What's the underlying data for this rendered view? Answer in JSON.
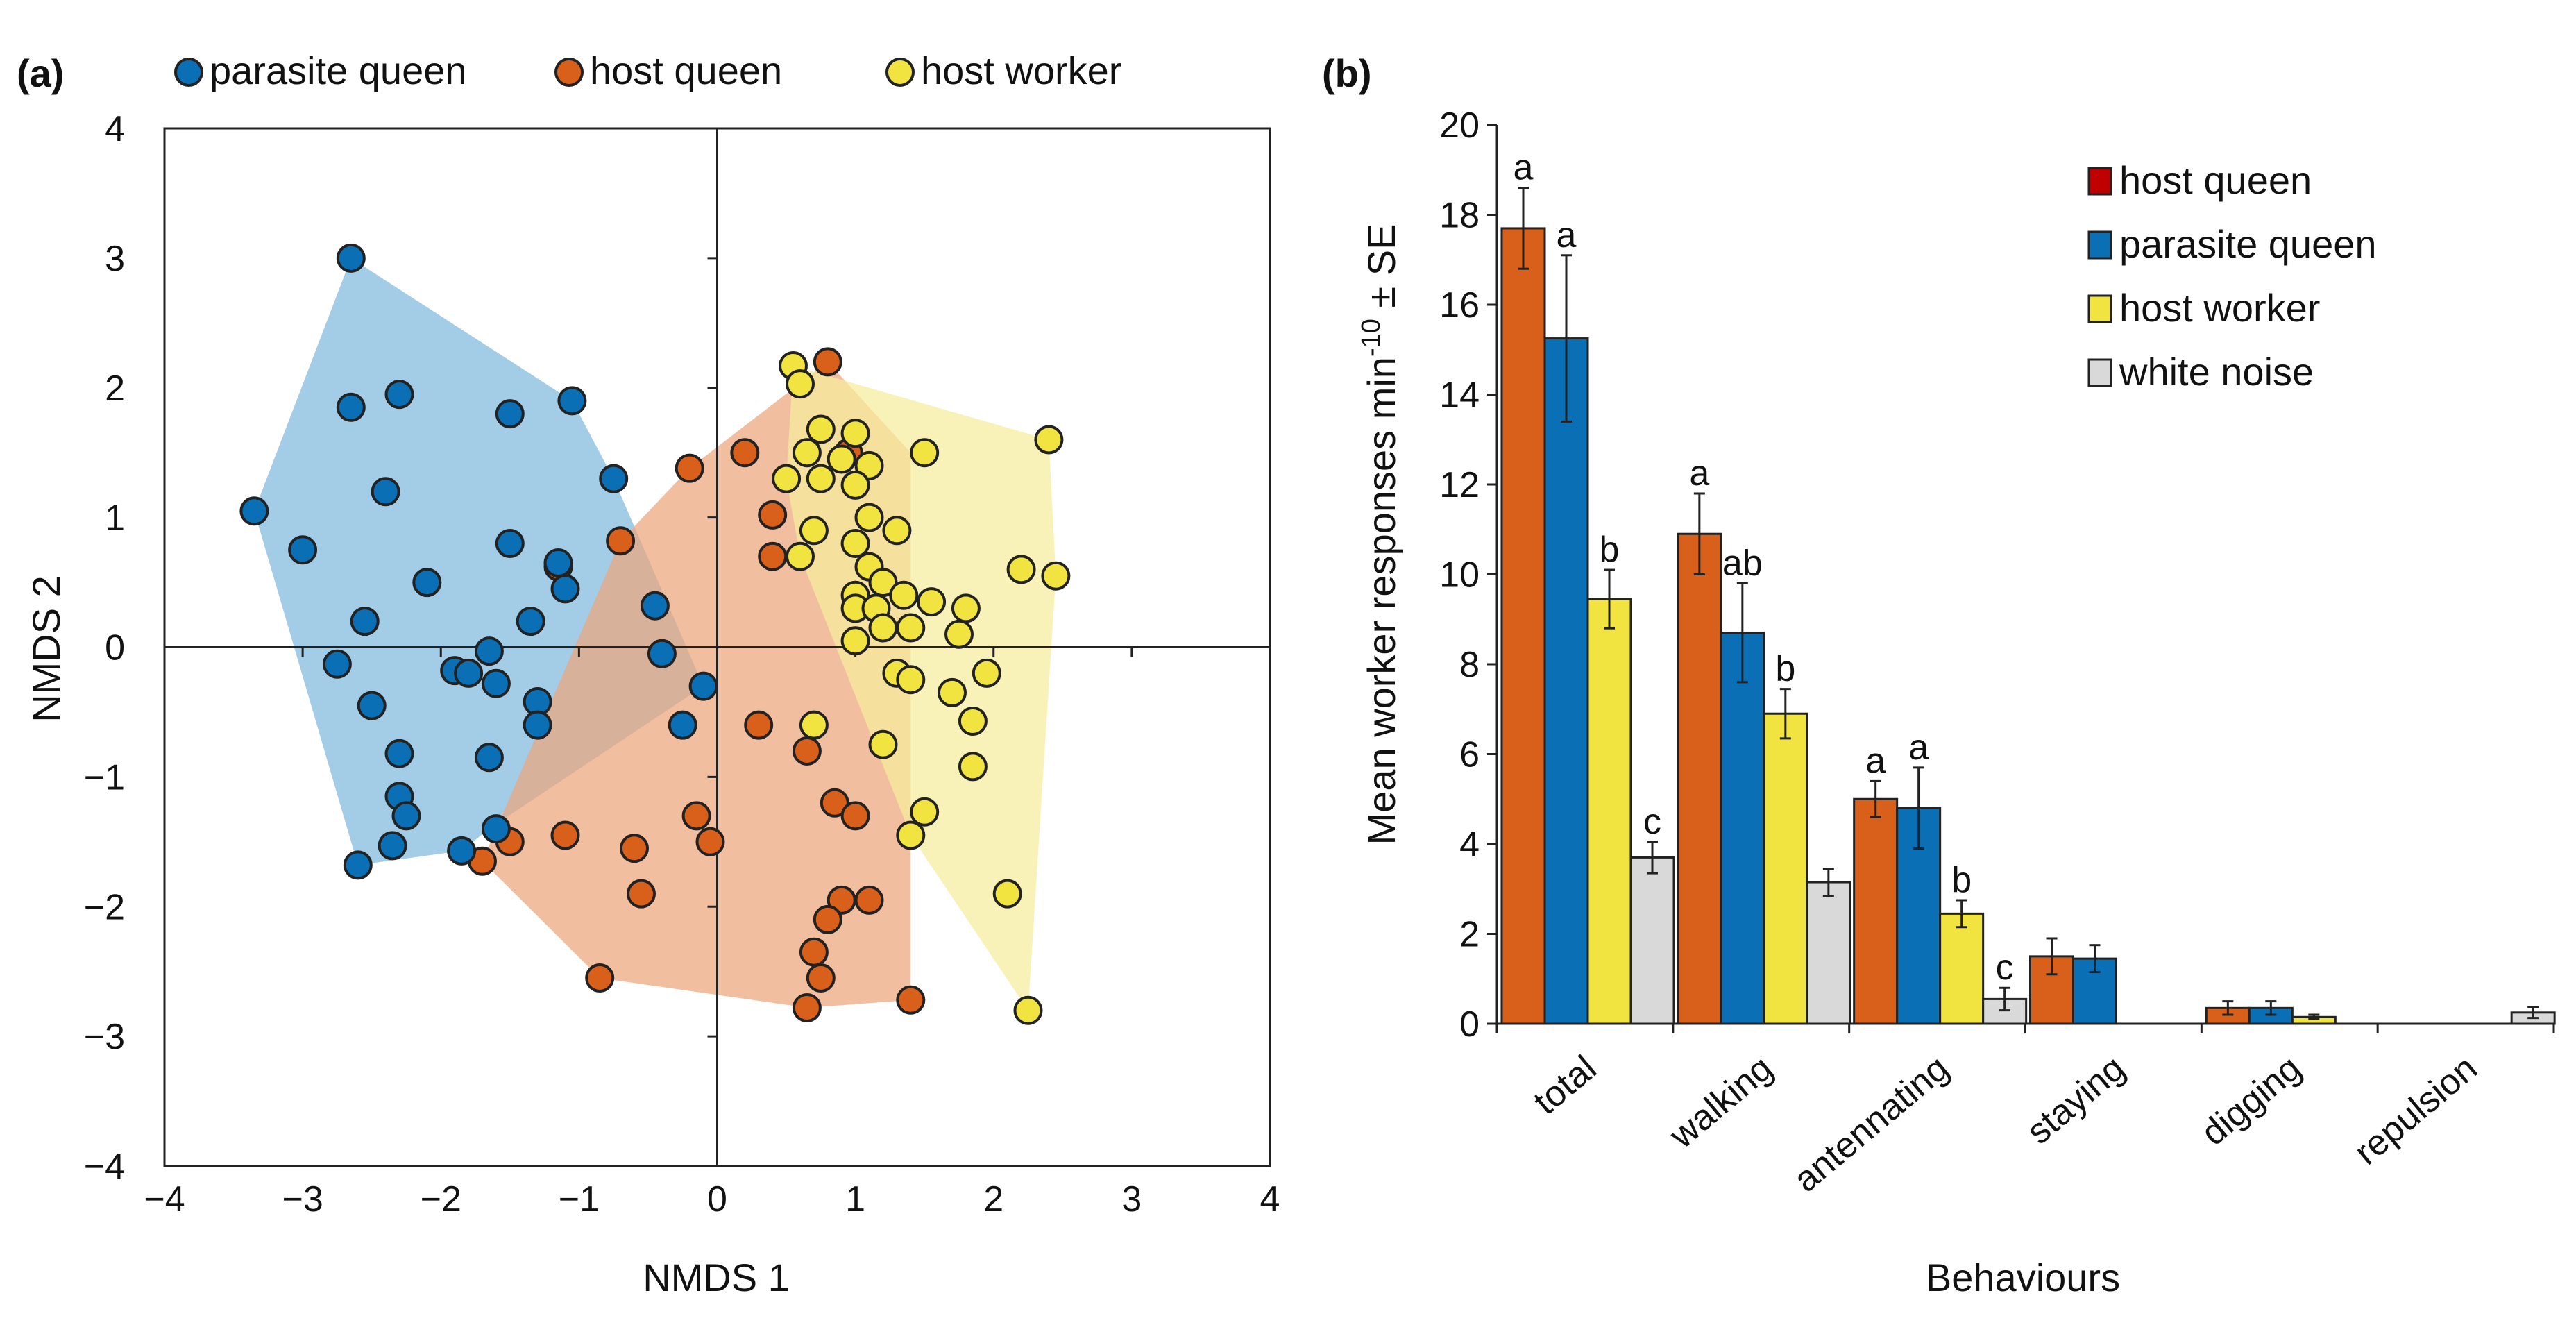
{
  "panels": [
    {
      "label": "(a)"
    },
    {
      "label": "(b)"
    }
  ],
  "chart_data": [
    {
      "type": "scatter",
      "panel": "(a)",
      "xlabel": "NMDS 1",
      "ylabel": "NMDS 2",
      "xlim": [
        -4,
        4
      ],
      "ylim": [
        -4,
        4
      ],
      "x_ticks": [
        -4,
        -3,
        -2,
        -1,
        0,
        1,
        2,
        3,
        4
      ],
      "y_ticks": [
        -4,
        -3,
        -2,
        -1,
        0,
        1,
        2,
        3,
        4
      ],
      "legend_position": "top",
      "series": [
        {
          "name": "parasite queen",
          "color": "#0b6fb5",
          "hull_color": "#7fb8dc",
          "points": [
            [
              -2.65,
              3.0
            ],
            [
              -2.65,
              1.85
            ],
            [
              -2.3,
              1.95
            ],
            [
              -2.4,
              1.2
            ],
            [
              -1.5,
              1.8
            ],
            [
              -1.05,
              1.9
            ],
            [
              -0.75,
              1.3
            ],
            [
              -3.35,
              1.05
            ],
            [
              -3.0,
              0.75
            ],
            [
              -1.5,
              0.8
            ],
            [
              -1.15,
              0.65
            ],
            [
              -2.1,
              0.5
            ],
            [
              -1.1,
              0.45
            ],
            [
              -1.35,
              0.2
            ],
            [
              -2.55,
              0.2
            ],
            [
              -1.65,
              -0.03
            ],
            [
              -2.75,
              -0.13
            ],
            [
              -1.9,
              -0.18
            ],
            [
              -1.8,
              -0.2
            ],
            [
              -1.6,
              -0.28
            ],
            [
              -1.3,
              -0.42
            ],
            [
              -2.5,
              -0.45
            ],
            [
              -1.3,
              -0.6
            ],
            [
              -2.3,
              -0.82
            ],
            [
              -1.65,
              -0.85
            ],
            [
              -2.3,
              -1.15
            ],
            [
              -2.25,
              -1.3
            ],
            [
              -1.6,
              -1.4
            ],
            [
              -2.35,
              -1.53
            ],
            [
              -1.85,
              -1.57
            ],
            [
              -2.6,
              -1.68
            ],
            [
              -0.45,
              0.32
            ],
            [
              -0.4,
              -0.05
            ],
            [
              -0.25,
              -0.6
            ],
            [
              -0.1,
              -0.3
            ]
          ],
          "hull": [
            [
              -2.65,
              3.0
            ],
            [
              -1.05,
              1.9
            ],
            [
              -0.75,
              1.3
            ],
            [
              -0.1,
              -0.3
            ],
            [
              -1.65,
              -1.4
            ],
            [
              -1.85,
              -1.57
            ],
            [
              -2.6,
              -1.68
            ],
            [
              -3.35,
              1.05
            ]
          ]
        },
        {
          "name": "host queen",
          "color": "#d9601b",
          "hull_color": "#eca67c",
          "points": [
            [
              0.8,
              2.2
            ],
            [
              0.2,
              1.5
            ],
            [
              -0.2,
              1.38
            ],
            [
              0.95,
              1.5
            ],
            [
              0.4,
              1.02
            ],
            [
              0.4,
              0.7
            ],
            [
              -0.7,
              0.82
            ],
            [
              -1.15,
              0.62
            ],
            [
              0.3,
              -0.6
            ],
            [
              0.65,
              -0.8
            ],
            [
              0.85,
              -1.2
            ],
            [
              1.0,
              -1.3
            ],
            [
              -0.15,
              -1.3
            ],
            [
              -0.05,
              -1.5
            ],
            [
              -1.1,
              -1.45
            ],
            [
              -1.5,
              -1.5
            ],
            [
              -0.6,
              -1.55
            ],
            [
              -1.7,
              -1.65
            ],
            [
              -0.55,
              -1.9
            ],
            [
              0.9,
              -1.95
            ],
            [
              1.1,
              -1.95
            ],
            [
              0.8,
              -2.1
            ],
            [
              0.7,
              -2.35
            ],
            [
              0.75,
              -2.55
            ],
            [
              -0.85,
              -2.55
            ],
            [
              0.65,
              -2.78
            ],
            [
              1.4,
              -2.72
            ]
          ],
          "hull": [
            [
              0.8,
              2.2
            ],
            [
              1.4,
              1.5
            ],
            [
              1.4,
              -2.72
            ],
            [
              0.65,
              -2.78
            ],
            [
              -0.85,
              -2.55
            ],
            [
              -1.7,
              -1.65
            ],
            [
              -0.7,
              0.82
            ],
            [
              -0.2,
              1.38
            ]
          ]
        },
        {
          "name": "host worker",
          "color": "#f1e440",
          "hull_color": "#f6ed9c",
          "points": [
            [
              0.55,
              2.17
            ],
            [
              0.6,
              2.03
            ],
            [
              0.75,
              1.68
            ],
            [
              1.0,
              1.65
            ],
            [
              0.65,
              1.5
            ],
            [
              0.9,
              1.45
            ],
            [
              1.1,
              1.4
            ],
            [
              0.5,
              1.3
            ],
            [
              0.75,
              1.3
            ],
            [
              1.5,
              1.5
            ],
            [
              2.4,
              1.6
            ],
            [
              1.0,
              1.25
            ],
            [
              1.1,
              1.0
            ],
            [
              0.7,
              0.9
            ],
            [
              1.3,
              0.9
            ],
            [
              1.0,
              0.8
            ],
            [
              0.6,
              0.7
            ],
            [
              1.1,
              0.62
            ],
            [
              1.2,
              0.5
            ],
            [
              1.35,
              0.4
            ],
            [
              1.0,
              0.4
            ],
            [
              1.55,
              0.35
            ],
            [
              2.2,
              0.6
            ],
            [
              2.45,
              0.55
            ],
            [
              1.8,
              0.3
            ],
            [
              1.0,
              0.3
            ],
            [
              1.15,
              0.3
            ],
            [
              1.2,
              0.15
            ],
            [
              1.4,
              0.15
            ],
            [
              1.75,
              0.1
            ],
            [
              1.0,
              0.05
            ],
            [
              1.3,
              -0.2
            ],
            [
              1.4,
              -0.25
            ],
            [
              1.95,
              -0.2
            ],
            [
              1.7,
              -0.35
            ],
            [
              1.85,
              -0.57
            ],
            [
              0.7,
              -0.6
            ],
            [
              1.2,
              -0.75
            ],
            [
              1.85,
              -0.92
            ],
            [
              1.5,
              -1.27
            ],
            [
              1.4,
              -1.45
            ],
            [
              2.1,
              -1.9
            ],
            [
              2.25,
              -2.8
            ]
          ],
          "hull": [
            [
              0.55,
              2.17
            ],
            [
              2.4,
              1.6
            ],
            [
              2.45,
              0.55
            ],
            [
              2.25,
              -2.8
            ],
            [
              1.4,
              -1.45
            ],
            [
              0.6,
              0.7
            ],
            [
              0.5,
              1.3
            ]
          ]
        }
      ]
    },
    {
      "type": "bar",
      "panel": "(b)",
      "xlabel": "Behaviours",
      "ylabel": "Mean worker responses min",
      "ylabel_superscript": "-10",
      "ylabel_suffix": " ± SE",
      "ylim": [
        0,
        20
      ],
      "y_ticks": [
        0,
        2,
        4,
        6,
        8,
        10,
        12,
        14,
        16,
        18,
        20
      ],
      "categories": [
        "total",
        "walking",
        "antennating",
        "staying",
        "digging",
        "repulsion"
      ],
      "legend_position": "top-right",
      "series": [
        {
          "name": "host queen",
          "color": "#d9601b",
          "legend_color": "#c00000",
          "values": [
            17.7,
            10.9,
            5.0,
            1.5,
            0.35,
            0
          ],
          "errors": [
            0.9,
            0.9,
            0.4,
            0.4,
            0.15,
            0
          ],
          "letters": [
            "a",
            "a",
            "a",
            "",
            "",
            ""
          ]
        },
        {
          "name": "parasite queen",
          "color": "#0b6fb5",
          "legend_color": "#0b6fb5",
          "values": [
            15.25,
            8.7,
            4.8,
            1.45,
            0.35,
            0
          ],
          "errors": [
            1.85,
            1.1,
            0.9,
            0.3,
            0.15,
            0
          ],
          "letters": [
            "a",
            "ab",
            "a",
            "",
            "",
            ""
          ]
        },
        {
          "name": "host worker",
          "color": "#f1e440",
          "legend_color": "#f1e440",
          "values": [
            9.45,
            6.9,
            2.45,
            0,
            0.15,
            0
          ],
          "errors": [
            0.65,
            0.55,
            0.3,
            0,
            0.05,
            0
          ],
          "letters": [
            "b",
            "b",
            "b",
            "",
            "",
            ""
          ]
        },
        {
          "name": "white noise",
          "color": "#d9d9d9",
          "legend_color": "#d9d9d9",
          "values": [
            3.7,
            3.15,
            0.55,
            0,
            0,
            0.25
          ],
          "errors": [
            0.35,
            0.3,
            0.25,
            0,
            0,
            0.12
          ],
          "letters": [
            "c",
            "",
            "c",
            "",
            "",
            ""
          ]
        }
      ]
    }
  ]
}
